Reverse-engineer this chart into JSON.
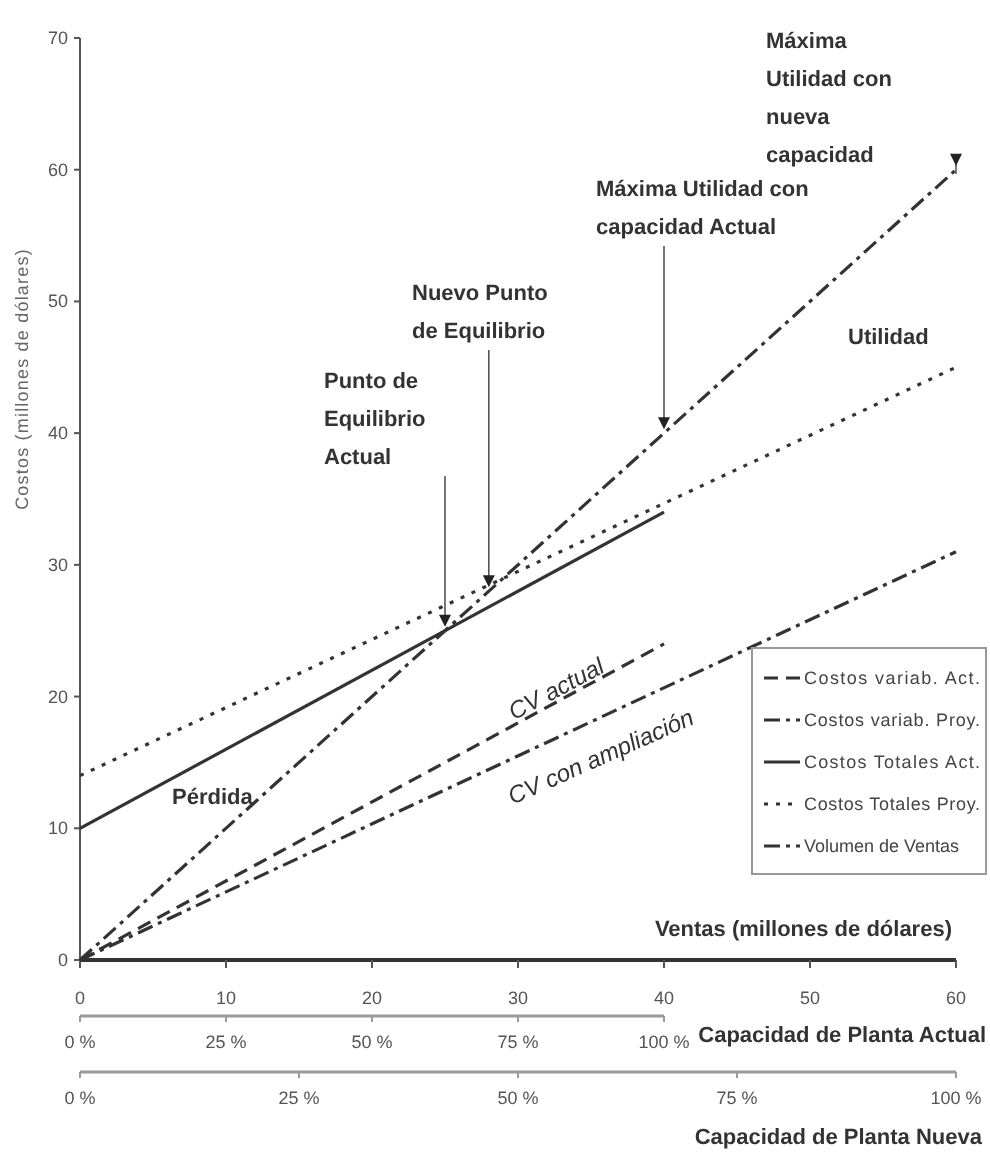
{
  "chart_data": {
    "type": "line",
    "xlabel": "Ventas (millones de dólares)",
    "ylabel": "Costos (millones de dólares)",
    "x2label": "Capacidad de Planta Nueva",
    "xlim": [
      0,
      60
    ],
    "xticks": [
      0,
      10,
      20,
      30,
      40,
      50,
      60
    ],
    "ylim": [
      0,
      70
    ],
    "yticks": [
      0,
      10,
      20,
      30,
      40,
      50,
      60,
      70
    ],
    "x2lim": [
      0,
      100
    ],
    "x2ticks": [
      {
        "value": 0,
        "label": "0 %"
      },
      {
        "value": 25,
        "label": "25 %"
      },
      {
        "value": 50,
        "label": "50 %"
      },
      {
        "value": 75,
        "label": "75 %"
      },
      {
        "value": 100,
        "label": "100 %"
      }
    ],
    "grid": false,
    "legend": "right",
    "marker": "none",
    "series": [
      {
        "name": "Costos variab. Act.",
        "color": "#333333",
        "line_style": "dashed",
        "x": [
          0,
          40
        ],
        "values": [
          0,
          24
        ]
      },
      {
        "name": "Costos variab. Proy.",
        "color": "#333333",
        "line_style": "dashdot",
        "x": [
          0,
          60
        ],
        "values": [
          0,
          31
        ]
      },
      {
        "name": "Costos Totales Act.",
        "color": "#333333",
        "line_style": "solid",
        "x": [
          0,
          40
        ],
        "values": [
          10,
          34
        ]
      },
      {
        "name": "Costos Totales Proy.",
        "color": "#333333",
        "line_style": "dotted",
        "x": [
          0,
          60
        ],
        "values": [
          14,
          45
        ]
      },
      {
        "name": "Volumen de Ventas",
        "color": "#333333",
        "line_style": "dashdot",
        "x": [
          0,
          60
        ],
        "values": [
          0,
          60
        ]
      }
    ],
    "annotations": [
      {
        "text": "Punto de Equilibrio Actual",
        "x": 25,
        "y": 25
      },
      {
        "text": "Nuevo Punto de Equilibrio",
        "x": 28,
        "y": 28
      },
      {
        "text": "Máxima Utilidad con capacidad Actual",
        "x": 40,
        "y": 40
      },
      {
        "text": "Máxima Utilidad con nueva capacidad",
        "x": 60,
        "y": 60
      },
      "Utilidad",
      "Pérdida",
      "CV actual",
      "CV con ampliación",
      "0 %",
      "25 %",
      "50 %",
      "75 %",
      "100 %",
      "Capacidad de Planta Actual"
    ]
  }
}
